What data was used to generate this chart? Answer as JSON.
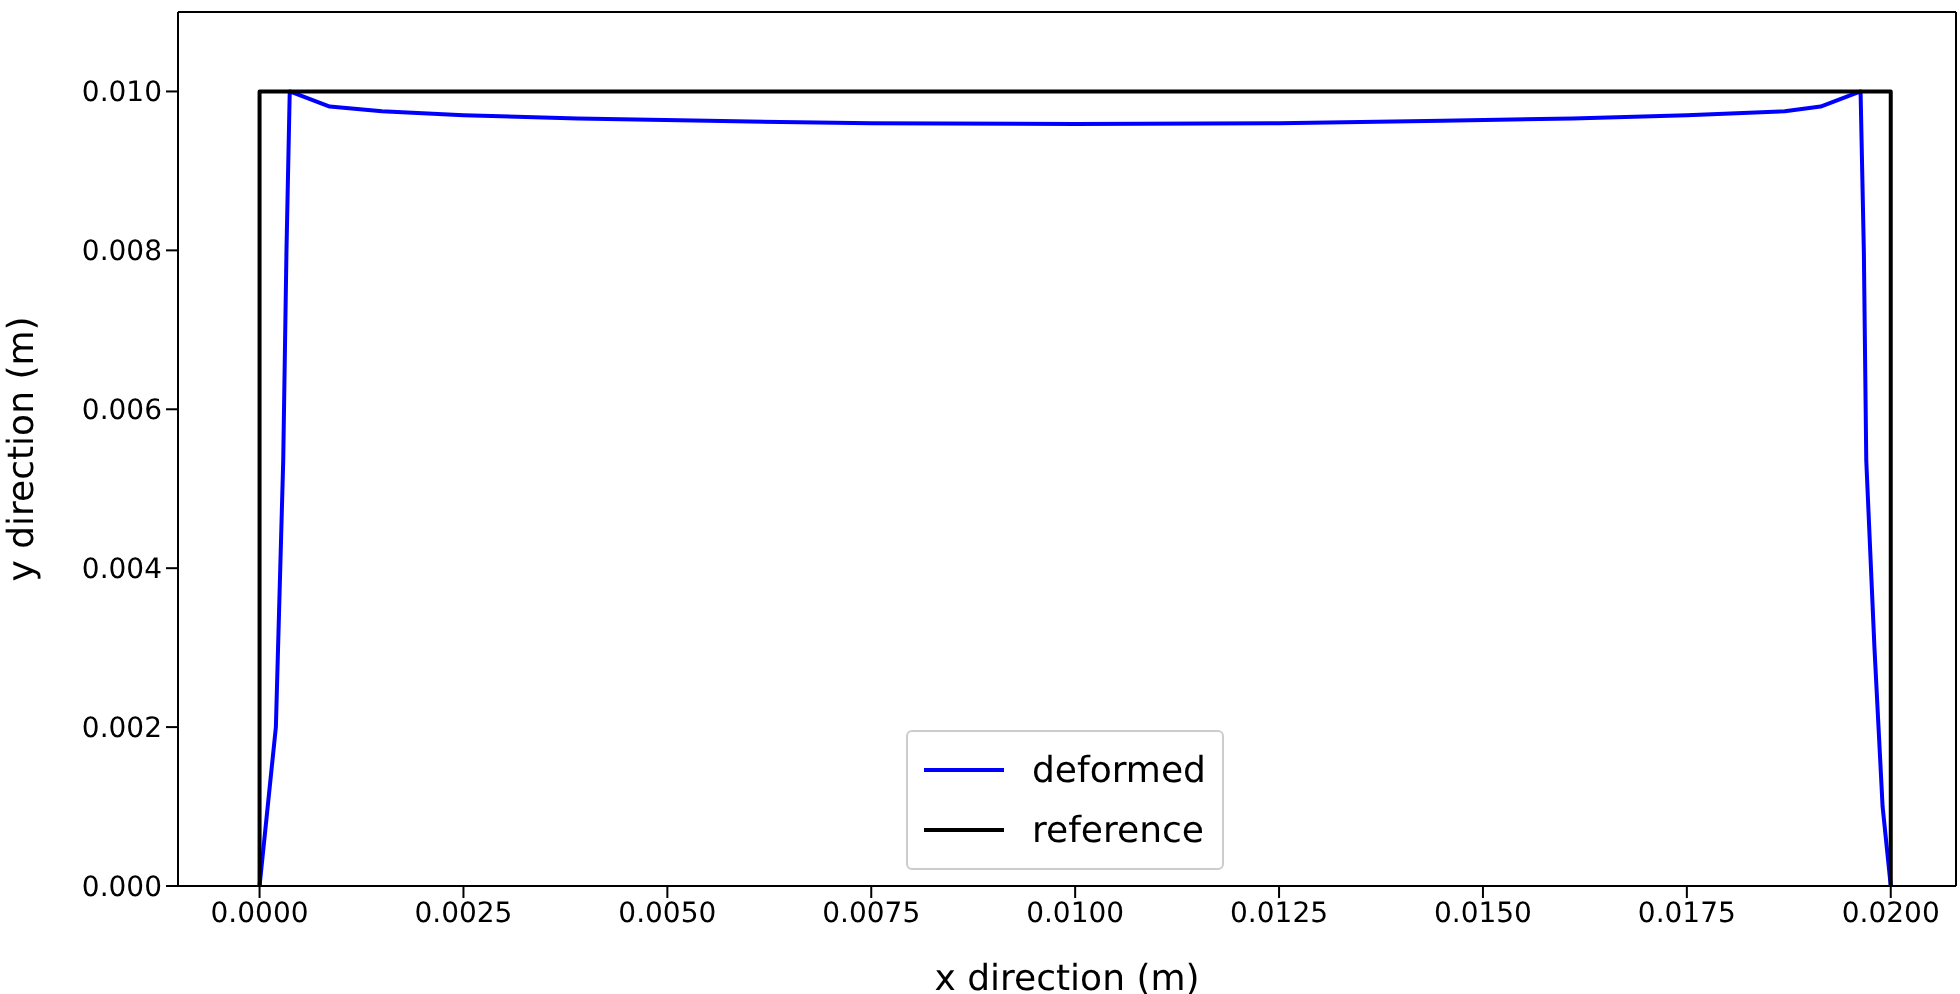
{
  "chart_data": {
    "type": "line",
    "xlabel": "x direction (m)",
    "ylabel": "y direction (m)",
    "xlim": [
      -0.001,
      0.0208
    ],
    "ylim": [
      0,
      0.011
    ],
    "xticks": [
      {
        "value": 0,
        "label": "0.0000"
      },
      {
        "value": 0.0025,
        "label": "0.0025"
      },
      {
        "value": 0.005,
        "label": "0.0050"
      },
      {
        "value": 0.0075,
        "label": "0.0075"
      },
      {
        "value": 0.01,
        "label": "0.0100"
      },
      {
        "value": 0.0125,
        "label": "0.0125"
      },
      {
        "value": 0.015,
        "label": "0.0150"
      },
      {
        "value": 0.0175,
        "label": "0.0175"
      },
      {
        "value": 0.02,
        "label": "0.0200"
      }
    ],
    "yticks": [
      {
        "value": 0,
        "label": "0.000"
      },
      {
        "value": 0.002,
        "label": "0.002"
      },
      {
        "value": 0.004,
        "label": "0.004"
      },
      {
        "value": 0.006,
        "label": "0.006"
      },
      {
        "value": 0.008,
        "label": "0.008"
      },
      {
        "value": 0.01,
        "label": "0.010"
      }
    ],
    "series": [
      {
        "name": "deformed",
        "color": "#0000ff",
        "x": [
          0,
          0.0001,
          0.0002,
          0.00029,
          0.00033,
          0.00037,
          0.00086,
          0.0015,
          0.0025,
          0.0039,
          0.0055,
          0.0075,
          0.01,
          0.0125,
          0.0145,
          0.0161,
          0.0175,
          0.0187,
          0.01914,
          0.01963,
          0.01967,
          0.0197,
          0.0198,
          0.01985,
          0.0199,
          0.02
        ],
        "values": [
          0,
          0.001,
          0.002,
          0.00535,
          0.008,
          0.01,
          0.00981,
          0.00975,
          0.0097,
          0.00966,
          0.00963,
          0.0096,
          0.00959,
          0.0096,
          0.00963,
          0.00966,
          0.0097,
          0.00975,
          0.00981,
          0.01,
          0.008,
          0.00535,
          0.003,
          0.002,
          0.001,
          0
        ]
      },
      {
        "name": "reference",
        "color": "#000000",
        "x": [
          0,
          0,
          0.02,
          0.02
        ],
        "values": [
          0,
          0.01,
          0.01,
          0
        ]
      }
    ],
    "legend": "bottom",
    "grid": false,
    "marker": "none",
    "line_style": "solid"
  }
}
